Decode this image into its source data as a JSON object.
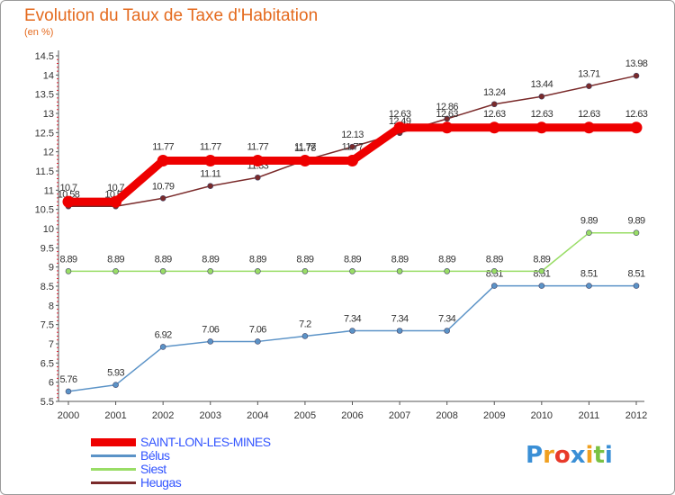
{
  "chart_data": {
    "type": "line",
    "title": "Evolution du Taux de Taxe d'Habitation",
    "subtitle": "(en %)",
    "xlabel": "",
    "ylabel": "",
    "x": [
      "2000",
      "2001",
      "2002",
      "2003",
      "2004",
      "2005",
      "2006",
      "2007",
      "2008",
      "2009",
      "2010",
      "2011",
      "2012"
    ],
    "ylim": [
      5.5,
      14.5
    ],
    "yticks": [
      "5.5",
      "6",
      "6.5",
      "7",
      "7.5",
      "8",
      "8.5",
      "9",
      "9.5",
      "10",
      "10.5",
      "11",
      "11.5",
      "12",
      "12.5",
      "13",
      "13.5",
      "14",
      "14.5"
    ],
    "grid": false,
    "series": [
      {
        "name": "SAINT-LON-LES-MINES",
        "color": "#ee0000",
        "values": [
          10.7,
          10.7,
          11.77,
          11.77,
          11.77,
          11.77,
          11.77,
          12.63,
          12.63,
          12.63,
          12.63,
          12.63,
          12.63
        ],
        "labels": [
          "10.7",
          "10.7",
          "11.77",
          "11.77",
          "11.77",
          "11.77",
          "11.77",
          "12.63",
          "12.63",
          "12.63",
          "12.63",
          "12.63",
          "12.63"
        ]
      },
      {
        "name": "Bélus",
        "color": "#5b93c7",
        "values": [
          5.76,
          5.93,
          6.92,
          7.06,
          7.06,
          7.2,
          7.34,
          7.34,
          7.34,
          8.51,
          8.51,
          8.51,
          8.51
        ],
        "labels": [
          "5.76",
          "5.93",
          "6.92",
          "7.06",
          "7.06",
          "7.2",
          "7.34",
          "7.34",
          "7.34",
          "8.51",
          "8.51",
          "8.51",
          "8.51"
        ]
      },
      {
        "name": "Siest",
        "color": "#99dd66",
        "values": [
          8.89,
          8.89,
          8.89,
          8.89,
          8.89,
          8.89,
          8.89,
          8.89,
          8.89,
          8.89,
          8.89,
          9.89,
          9.89
        ],
        "labels": [
          "8.89",
          "8.89",
          "8.89",
          "8.89",
          "8.89",
          "8.89",
          "8.89",
          "8.89",
          "8.89",
          "8.89",
          "8.89",
          "9.89",
          "9.89"
        ]
      },
      {
        "name": "Heugas",
        "color": "#7a2a2a",
        "values": [
          10.58,
          10.58,
          10.79,
          11.11,
          11.33,
          11.78,
          12.13,
          12.49,
          12.86,
          13.24,
          13.44,
          13.71,
          13.98
        ],
        "labels": [
          "10.58",
          "10.58",
          "10.79",
          "11.11",
          "11.33",
          "11.78",
          "12.13",
          "12.49",
          "12.86",
          "13.24",
          "13.44",
          "13.71",
          "13.98"
        ]
      }
    ]
  },
  "legend": {
    "items": [
      {
        "name": "SAINT-LON-LES-MINES",
        "color": "#ee0000"
      },
      {
        "name": "Bélus",
        "color": "#5b93c7"
      },
      {
        "name": "Siest",
        "color": "#99dd66"
      },
      {
        "name": "Heugas",
        "color": "#7a2a2a"
      }
    ]
  },
  "logo": {
    "letters": [
      "P",
      "r",
      "o",
      "x",
      "i",
      "t",
      "i"
    ],
    "colors": [
      "#3a8fd6",
      "#f0a020",
      "#e83a2a",
      "#3a8fd6",
      "#f0a020",
      "#7ac143",
      "#3a8fd6"
    ]
  }
}
